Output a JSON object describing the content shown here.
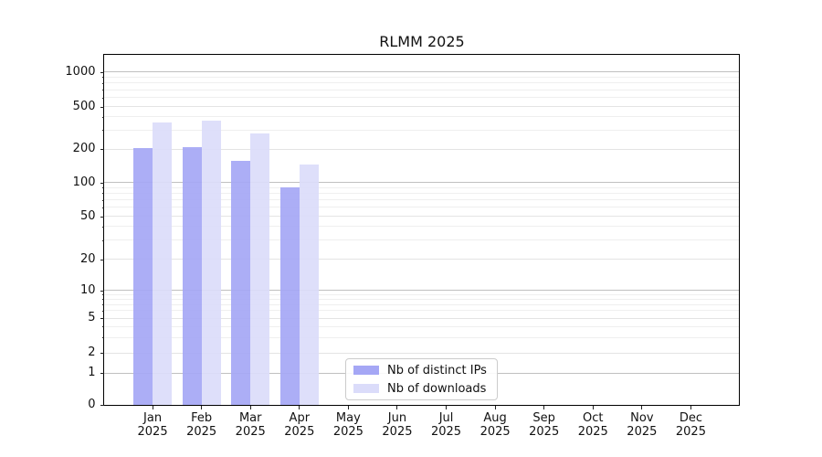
{
  "title": "RLMM 2025",
  "legend": {
    "items": [
      {
        "label": "Nb of distinct IPs",
        "color": "#a5a7f5"
      },
      {
        "label": "Nb of downloads",
        "color": "#dbdcfa"
      }
    ]
  },
  "y_axis": {
    "tick_labels": [
      "0",
      "1",
      "2",
      "5",
      "10",
      "20",
      "50",
      "100",
      "200",
      "500",
      "1000"
    ]
  },
  "x_axis": {
    "month_labels": [
      "Jan",
      "Feb",
      "Mar",
      "Apr",
      "May",
      "Jun",
      "Jul",
      "Aug",
      "Sep",
      "Oct",
      "Nov",
      "Dec"
    ],
    "year_label": "2025"
  },
  "chart_data": {
    "type": "bar",
    "title": "RLMM 2025",
    "xlabel": "",
    "ylabel": "",
    "categories": [
      "Jan 2025",
      "Feb 2025",
      "Mar 2025",
      "Apr 2025",
      "May 2025",
      "Jun 2025",
      "Jul 2025",
      "Aug 2025",
      "Sep 2025",
      "Oct 2025",
      "Nov 2025",
      "Dec 2025"
    ],
    "series": [
      {
        "name": "Nb of distinct IPs",
        "color": "#a5a7f5",
        "values": [
          205,
          207,
          155,
          91,
          null,
          null,
          null,
          null,
          null,
          null,
          null,
          null
        ]
      },
      {
        "name": "Nb of downloads",
        "color": "#dbdcfa",
        "values": [
          357,
          365,
          282,
          144,
          null,
          null,
          null,
          null,
          null,
          null,
          null,
          null
        ]
      }
    ],
    "y_scale": "symlog",
    "y_ticks": [
      0,
      1,
      2,
      5,
      10,
      20,
      50,
      100,
      200,
      500,
      1000
    ],
    "ylim": [
      0,
      1450
    ],
    "grid": "horizontal",
    "legend_position": "bottom-center"
  }
}
